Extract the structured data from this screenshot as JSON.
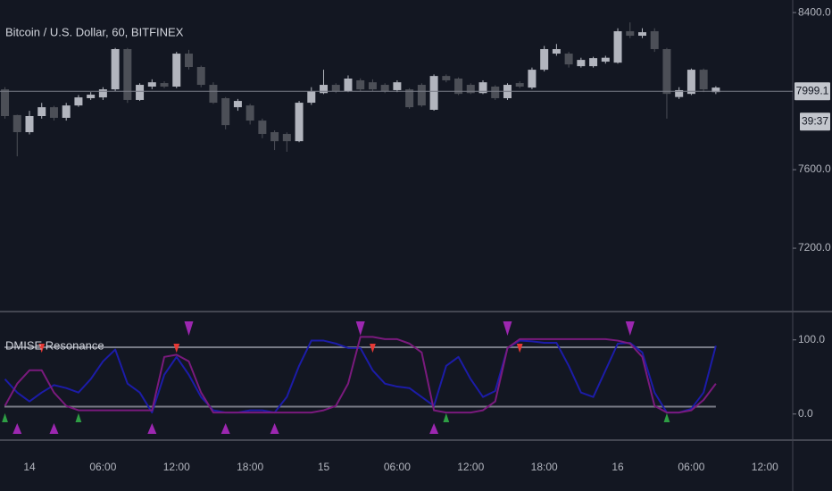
{
  "chart_data": [
    {
      "type": "candlestick",
      "title": "Bitcoin / U.S. Dollar, 60, BITFINEX",
      "x": [
        null,
        null,
        "14",
        null,
        null,
        null,
        null,
        null,
        "06:00",
        null,
        null,
        null,
        null,
        null,
        "12:00",
        null,
        null,
        null,
        null,
        null,
        "18:00",
        null,
        null,
        null,
        null,
        null,
        "15",
        null,
        null,
        null,
        null,
        null,
        "06:00",
        null,
        null,
        null,
        null,
        null,
        "12:00",
        null,
        null,
        null,
        null,
        null,
        "18:00",
        null,
        null,
        null,
        null,
        null,
        "16",
        null,
        null,
        null,
        null,
        null,
        "06:00",
        null,
        null,
        null,
        null,
        null,
        "12:00"
      ],
      "open": [
        8009,
        7878,
        7791,
        7873,
        7918,
        7864,
        7927,
        7964,
        7968,
        8009,
        8214,
        7955,
        8023,
        8041,
        8023,
        8191,
        8123,
        8032,
        7964,
        7918,
        7927,
        7850,
        7791,
        7782,
        7745,
        7941,
        7990,
        8032,
        8000,
        8055,
        8045,
        8032,
        8005,
        8009,
        8032,
        7905,
        8077,
        8064,
        8032,
        7990,
        8023,
        7964,
        8041,
        8018,
        8109,
        8191,
        8191,
        8127,
        8127,
        8150,
        8145,
        8305,
        8282,
        8305,
        8214,
        7970,
        7986,
        8109,
        7995,
        null,
        null,
        null,
        null
      ],
      "high": [
        8020,
        7880,
        7900,
        7940,
        7925,
        7940,
        7980,
        7995,
        8020,
        8220,
        8220,
        8040,
        8060,
        8050,
        8200,
        8210,
        8130,
        8045,
        7970,
        7960,
        7935,
        7860,
        7800,
        7790,
        7950,
        8020,
        8109,
        8040,
        8080,
        8065,
        8060,
        8040,
        8055,
        8015,
        8040,
        8085,
        8085,
        8070,
        8040,
        8055,
        8030,
        8040,
        8050,
        8120,
        8230,
        8240,
        8200,
        8170,
        8175,
        8180,
        8320,
        8350,
        8320,
        8320,
        8220,
        8020,
        8115,
        8115,
        8025,
        null,
        null,
        null,
        null
      ],
      "low": [
        7860,
        7668,
        7780,
        7860,
        7850,
        7850,
        7920,
        7955,
        7955,
        8000,
        7940,
        7950,
        8010,
        8015,
        8015,
        8110,
        8020,
        7935,
        7805,
        7900,
        7830,
        7760,
        7700,
        7691,
        7740,
        7930,
        7985,
        7990,
        7995,
        8000,
        8000,
        7990,
        7995,
        7910,
        7920,
        7900,
        8045,
        7980,
        7985,
        7985,
        7955,
        7955,
        8015,
        8010,
        8100,
        8180,
        8120,
        8120,
        8120,
        8140,
        8140,
        8270,
        8270,
        8200,
        7860,
        7960,
        7980,
        7995,
        7985,
        null,
        null,
        null,
        null
      ],
      "close": [
        7873,
        7791,
        7873,
        7918,
        7864,
        7927,
        7968,
        7982,
        8009,
        8214,
        7955,
        8032,
        8045,
        8023,
        8191,
        8123,
        8032,
        7941,
        7827,
        7950,
        7850,
        7782,
        7745,
        7745,
        7941,
        8000,
        8032,
        8000,
        8064,
        8009,
        8009,
        8000,
        8045,
        7918,
        7927,
        8077,
        8055,
        7986,
        7990,
        8045,
        7964,
        8032,
        8023,
        8109,
        8214,
        8214,
        8136,
        8159,
        8168,
        8170,
        8305,
        8282,
        8300,
        8214,
        7986,
        8005,
        8109,
        8009,
        8018,
        null,
        null,
        null,
        null
      ],
      "up_color": "#b2b5be",
      "down_color": "#4c4f57",
      "ylim": [
        6882,
        8464
      ],
      "yticks": [
        {
          "value": 7200,
          "label": "7200.0"
        },
        {
          "value": 7600,
          "label": "7600.0"
        },
        {
          "value": 8400,
          "label": "8400.0"
        }
      ],
      "last_price": {
        "value": 7999.1,
        "label": "7999.1"
      },
      "countdown": "39:37"
    },
    {
      "type": "line",
      "title": "DMISE Resonance",
      "ylim": [
        -34,
        137
      ],
      "yticks": [
        {
          "value": 0,
          "label": "0.0"
        },
        {
          "value": 100,
          "label": "100.0"
        }
      ],
      "levels": [
        10,
        90
      ],
      "series": [
        {
          "color": "#1c1ca8",
          "values": [
            47,
            29,
            17,
            29,
            39,
            35,
            29,
            47,
            71,
            87,
            41,
            29,
            2,
            53,
            77,
            53,
            23,
            5,
            2,
            2,
            5,
            5,
            2,
            23,
            65,
            99,
            99,
            95,
            89,
            89,
            59,
            41,
            37,
            35,
            23,
            11,
            65,
            77,
            47,
            23,
            31,
            89,
            99,
            98,
            96,
            96,
            65,
            29,
            23,
            59,
            95,
            96,
            83,
            29,
            2,
            2,
            7,
            29,
            92,
            null,
            null,
            null,
            null
          ]
        },
        {
          "color": "#7a1a7d",
          "values": [
            11,
            41,
            59,
            59,
            29,
            11,
            5,
            5,
            5,
            5,
            5,
            5,
            5,
            77,
            80,
            71,
            29,
            2,
            2,
            2,
            2,
            2,
            2,
            2,
            2,
            2,
            5,
            11,
            41,
            104,
            104,
            101,
            101,
            95,
            83,
            5,
            2,
            2,
            2,
            5,
            17,
            89,
            101,
            101,
            101,
            101,
            101,
            101,
            101,
            101,
            99,
            95,
            77,
            11,
            2,
            2,
            5,
            19,
            41,
            null,
            null,
            null,
            null
          ]
        }
      ],
      "markers": [
        {
          "shape": "triangle-up",
          "color": "#9c27b0",
          "at": [
            1,
            4,
            12,
            18,
            22,
            35
          ]
        },
        {
          "shape": "triangle-down",
          "color": "#9c27b0",
          "at": [
            15,
            29,
            41,
            51
          ]
        },
        {
          "shape": "arrow-down",
          "color": "#e53935",
          "at": [
            3,
            14,
            30,
            42
          ]
        },
        {
          "shape": "arrow-up",
          "color": "#2e9e44",
          "at": [
            0,
            6,
            36,
            54
          ]
        }
      ]
    }
  ]
}
